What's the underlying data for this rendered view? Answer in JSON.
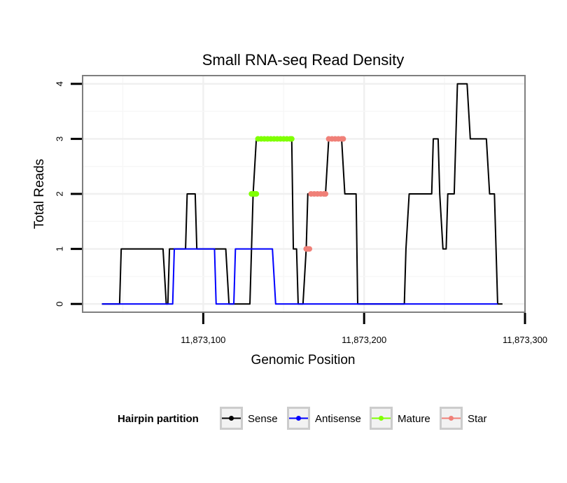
{
  "chart_data": {
    "type": "line",
    "title": "Small RNA-seq Read Density",
    "xlabel": "Genomic Position",
    "ylabel": "Total Reads",
    "xlim": [
      11873025,
      11873300
    ],
    "ylim": [
      -0.15,
      4.15
    ],
    "x_ticks": [
      {
        "value": 11873100,
        "label": "11,873,100"
      },
      {
        "value": 11873200,
        "label": "11,873,200"
      },
      {
        "value": 11873300,
        "label": "11,873,300"
      }
    ],
    "y_ticks": [
      {
        "value": 0,
        "label": "0"
      },
      {
        "value": 1,
        "label": "1"
      },
      {
        "value": 2,
        "label": "2"
      },
      {
        "value": 3,
        "label": "3"
      },
      {
        "value": 4,
        "label": "4"
      }
    ],
    "grid": true,
    "legend": {
      "title": "Hairpin partition",
      "placement": "bottom",
      "entries": [
        "Sense",
        "Antisense",
        "Mature",
        "Star"
      ]
    },
    "series": [
      {
        "name": "Sense",
        "color": "#000000",
        "points": [
          [
            11873037,
            0
          ],
          [
            11873048,
            0
          ],
          [
            11873049,
            1
          ],
          [
            11873075,
            1
          ],
          [
            11873077,
            0
          ],
          [
            11873078,
            0
          ],
          [
            11873079,
            1
          ],
          [
            11873089,
            1
          ],
          [
            11873090,
            2
          ],
          [
            11873095,
            2
          ],
          [
            11873096,
            1
          ],
          [
            11873114,
            1
          ],
          [
            11873116,
            0
          ],
          [
            11873129,
            0
          ],
          [
            11873131,
            2
          ],
          [
            11873133,
            3
          ],
          [
            11873155,
            3
          ],
          [
            11873156,
            1
          ],
          [
            11873158,
            1
          ],
          [
            11873159,
            0
          ],
          [
            11873162,
            0
          ],
          [
            11873164,
            1
          ],
          [
            11873165,
            2
          ],
          [
            11873176,
            2
          ],
          [
            11873178,
            3
          ],
          [
            11873186,
            3
          ],
          [
            11873188,
            2
          ],
          [
            11873195,
            2
          ],
          [
            11873196,
            0
          ],
          [
            11873225,
            0
          ],
          [
            11873226,
            1
          ],
          [
            11873228,
            2
          ],
          [
            11873242,
            2
          ],
          [
            11873243,
            3
          ],
          [
            11873246,
            3
          ],
          [
            11873247,
            2
          ],
          [
            11873249,
            1
          ],
          [
            11873251,
            1
          ],
          [
            11873252,
            2
          ],
          [
            11873256,
            2
          ],
          [
            11873258,
            4
          ],
          [
            11873264,
            4
          ],
          [
            11873266,
            3
          ],
          [
            11873276,
            3
          ],
          [
            11873278,
            2
          ],
          [
            11873281,
            2
          ],
          [
            11873283,
            0
          ],
          [
            11873286,
            0
          ]
        ]
      },
      {
        "name": "Antisense",
        "color": "#0000ff",
        "points": [
          [
            11873037,
            0
          ],
          [
            11873081,
            0
          ],
          [
            11873082,
            1
          ],
          [
            11873107,
            1
          ],
          [
            11873108,
            0
          ],
          [
            11873119,
            0
          ],
          [
            11873120,
            1
          ],
          [
            11873143,
            1
          ],
          [
            11873145,
            0
          ],
          [
            11873283,
            0
          ]
        ]
      },
      {
        "name": "Mature",
        "color": "#7fff00",
        "points": [
          [
            11873130,
            2
          ],
          [
            11873131,
            2
          ],
          [
            11873132,
            2
          ],
          [
            11873133,
            2
          ],
          [
            11873134,
            3
          ],
          [
            11873136,
            3
          ],
          [
            11873138,
            3
          ],
          [
            11873140,
            3
          ],
          [
            11873142,
            3
          ],
          [
            11873144,
            3
          ],
          [
            11873146,
            3
          ],
          [
            11873148,
            3
          ],
          [
            11873150,
            3
          ],
          [
            11873152,
            3
          ],
          [
            11873154,
            3
          ],
          [
            11873155,
            3
          ]
        ]
      },
      {
        "name": "Star",
        "color": "#f08078",
        "points": [
          [
            11873164,
            1
          ],
          [
            11873165,
            1
          ],
          [
            11873166,
            1
          ],
          [
            11873167,
            2
          ],
          [
            11873169,
            2
          ],
          [
            11873171,
            2
          ],
          [
            11873173,
            2
          ],
          [
            11873175,
            2
          ],
          [
            11873176,
            2
          ],
          [
            11873178,
            3
          ],
          [
            11873180,
            3
          ],
          [
            11873182,
            3
          ],
          [
            11873184,
            3
          ],
          [
            11873186,
            3
          ],
          [
            11873187,
            3
          ]
        ]
      }
    ]
  }
}
